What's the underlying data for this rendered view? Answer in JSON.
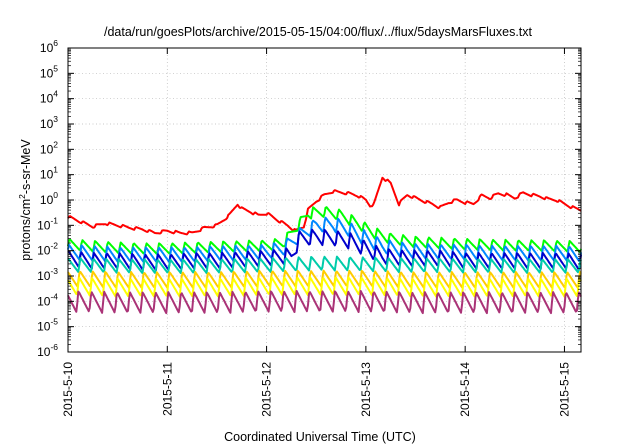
{
  "chart_data": {
    "type": "line",
    "title": "/data/run/goesPlots/archive/2015-05-15/04:00/flux/../flux/5daysMarsFluxes.txt",
    "xlabel": "Coordinated Universal Time (UTC)",
    "ylabel": {
      "prefix": "protons/cm",
      "sup": "2",
      "suffix": "-s-sr-MeV"
    },
    "yscale": "log",
    "ylim": [
      1e-06,
      1000000.0
    ],
    "xlim": [
      "2015-05-10 00:00",
      "2015-05-15 04:00"
    ],
    "grid": true,
    "legend": "none",
    "x_ticks": [
      {
        "t": 0,
        "label": "2015-5-10"
      },
      {
        "t": 24,
        "label": "2015-5-11"
      },
      {
        "t": 48,
        "label": "2015-5-12"
      },
      {
        "t": 72,
        "label": "2015-5-13"
      },
      {
        "t": 96,
        "label": "2015-5-14"
      },
      {
        "t": 120,
        "label": "2015-5-15"
      }
    ],
    "y_ticks": [
      {
        "exp": -6,
        "label": "10",
        "sup": "-6"
      },
      {
        "exp": -5,
        "label": "10",
        "sup": "-5"
      },
      {
        "exp": -4,
        "label": "10",
        "sup": "-4"
      },
      {
        "exp": -3,
        "label": "10",
        "sup": "-3"
      },
      {
        "exp": -2,
        "label": "10",
        "sup": "-2"
      },
      {
        "exp": -1,
        "label": "10",
        "sup": "-1"
      },
      {
        "exp": 0,
        "label": "10",
        "sup": "0"
      },
      {
        "exp": 1,
        "label": "10",
        "sup": "1"
      },
      {
        "exp": 2,
        "label": "10",
        "sup": "2"
      },
      {
        "exp": 3,
        "label": "10",
        "sup": "3"
      },
      {
        "exp": 4,
        "label": "10",
        "sup": "4"
      },
      {
        "exp": 5,
        "label": "10",
        "sup": "5"
      },
      {
        "exp": 6,
        "label": "10",
        "sup": "6"
      }
    ],
    "series": [
      {
        "color": "#ff0000",
        "values": [
          [
            0,
            0.22
          ],
          [
            3,
            0.14
          ],
          [
            6,
            0.09
          ],
          [
            9,
            0.12
          ],
          [
            12,
            0.1
          ],
          [
            15,
            0.08
          ],
          [
            18,
            0.07
          ],
          [
            21,
            0.05
          ],
          [
            24,
            0.06
          ],
          [
            27,
            0.05
          ],
          [
            30,
            0.05
          ],
          [
            33,
            0.08
          ],
          [
            36,
            0.1
          ],
          [
            39,
            0.25
          ],
          [
            41,
            0.7
          ],
          [
            42,
            0.45
          ],
          [
            44,
            0.35
          ],
          [
            46,
            0.25
          ],
          [
            48,
            0.3
          ],
          [
            51,
            0.15
          ],
          [
            53,
            0.1
          ],
          [
            55,
            0.06
          ],
          [
            57,
            0.09
          ],
          [
            58,
            0.4
          ],
          [
            60,
            0.9
          ],
          [
            62,
            1.6
          ],
          [
            64,
            2.2
          ],
          [
            66,
            2.0
          ],
          [
            68,
            1.8
          ],
          [
            70,
            1.5
          ],
          [
            72,
            1.0
          ],
          [
            73,
            0.6
          ],
          [
            74,
            0.7
          ],
          [
            76,
            8.0
          ],
          [
            78,
            4.5
          ],
          [
            80,
            0.7
          ],
          [
            82,
            1.6
          ],
          [
            84,
            1.2
          ],
          [
            86,
            0.9
          ],
          [
            88,
            0.7
          ],
          [
            90,
            0.5
          ],
          [
            92,
            0.8
          ],
          [
            94,
            1.0
          ],
          [
            96,
            0.8
          ],
          [
            98,
            0.7
          ],
          [
            100,
            1.5
          ],
          [
            102,
            1.2
          ],
          [
            104,
            1.8
          ],
          [
            106,
            1.6
          ],
          [
            108,
            1.2
          ],
          [
            110,
            1.9
          ],
          [
            112,
            1.6
          ],
          [
            114,
            1.4
          ],
          [
            116,
            1.1
          ],
          [
            118,
            1.0
          ],
          [
            120,
            0.7
          ],
          [
            122,
            0.5
          ],
          [
            124,
            0.4
          ]
        ]
      },
      {
        "color": "#00ff00",
        "values": [
          [
            0,
            0.018
          ],
          [
            6,
            0.015
          ],
          [
            12,
            0.013
          ],
          [
            18,
            0.012
          ],
          [
            24,
            0.012
          ],
          [
            30,
            0.013
          ],
          [
            36,
            0.014
          ],
          [
            42,
            0.015
          ],
          [
            48,
            0.016
          ],
          [
            52,
            0.02
          ],
          [
            56,
            0.12
          ],
          [
            58,
            0.3
          ],
          [
            62,
            0.35
          ],
          [
            66,
            0.25
          ],
          [
            70,
            0.12
          ],
          [
            74,
            0.05
          ],
          [
            78,
            0.03
          ],
          [
            84,
            0.022
          ],
          [
            90,
            0.02
          ],
          [
            96,
            0.018
          ],
          [
            102,
            0.017
          ],
          [
            108,
            0.016
          ],
          [
            114,
            0.016
          ],
          [
            120,
            0.015
          ],
          [
            124,
            0.014
          ]
        ]
      },
      {
        "color": "#0088ff",
        "values": [
          [
            0,
            0.009
          ],
          [
            6,
            0.008
          ],
          [
            12,
            0.007
          ],
          [
            18,
            0.007
          ],
          [
            24,
            0.007
          ],
          [
            30,
            0.007
          ],
          [
            36,
            0.008
          ],
          [
            42,
            0.008
          ],
          [
            48,
            0.009
          ],
          [
            52,
            0.012
          ],
          [
            56,
            0.04
          ],
          [
            60,
            0.1
          ],
          [
            64,
            0.11
          ],
          [
            68,
            0.07
          ],
          [
            72,
            0.03
          ],
          [
            76,
            0.015
          ],
          [
            82,
            0.01
          ],
          [
            90,
            0.009
          ],
          [
            96,
            0.009
          ],
          [
            102,
            0.008
          ],
          [
            108,
            0.008
          ],
          [
            114,
            0.008
          ],
          [
            120,
            0.008
          ],
          [
            124,
            0.007
          ]
        ]
      },
      {
        "color": "#0000cc",
        "values": [
          [
            0,
            0.005
          ],
          [
            6,
            0.004
          ],
          [
            12,
            0.004
          ],
          [
            18,
            0.0035
          ],
          [
            24,
            0.0035
          ],
          [
            30,
            0.004
          ],
          [
            36,
            0.004
          ],
          [
            42,
            0.0045
          ],
          [
            48,
            0.005
          ],
          [
            52,
            0.006
          ],
          [
            54,
            0.006
          ],
          [
            56,
            0.03
          ],
          [
            60,
            0.035
          ],
          [
            64,
            0.032
          ],
          [
            68,
            0.025
          ],
          [
            72,
            0.012
          ],
          [
            76,
            0.006
          ],
          [
            82,
            0.005
          ],
          [
            90,
            0.005
          ],
          [
            96,
            0.004
          ],
          [
            102,
            0.004
          ],
          [
            108,
            0.004
          ],
          [
            114,
            0.004
          ],
          [
            120,
            0.004
          ],
          [
            124,
            0.0035
          ]
        ]
      },
      {
        "color": "#00ccaa",
        "values": [
          [
            0,
            0.0028
          ],
          [
            12,
            0.0025
          ],
          [
            24,
            0.0024
          ],
          [
            36,
            0.0025
          ],
          [
            48,
            0.0027
          ],
          [
            56,
            0.003
          ],
          [
            62,
            0.0032
          ],
          [
            70,
            0.003
          ],
          [
            80,
            0.0027
          ],
          [
            96,
            0.0026
          ],
          [
            108,
            0.0025
          ],
          [
            124,
            0.0025
          ]
        ]
      },
      {
        "color": "#ffcc00",
        "values": [
          [
            0,
            0.0008
          ],
          [
            12,
            0.0007
          ],
          [
            24,
            0.0007
          ],
          [
            36,
            0.0007
          ],
          [
            48,
            0.0008
          ],
          [
            60,
            0.0008
          ],
          [
            72,
            0.0008
          ],
          [
            84,
            0.0007
          ],
          [
            96,
            0.0007
          ],
          [
            108,
            0.0007
          ],
          [
            124,
            0.0007
          ]
        ]
      },
      {
        "color": "#ffff00",
        "values": [
          [
            0,
            0.0004
          ],
          [
            12,
            0.00035
          ],
          [
            24,
            0.00035
          ],
          [
            36,
            0.00035
          ],
          [
            48,
            0.0004
          ],
          [
            60,
            0.0004
          ],
          [
            72,
            0.0004
          ],
          [
            84,
            0.00035
          ],
          [
            96,
            0.00035
          ],
          [
            108,
            0.00035
          ],
          [
            124,
            0.00035
          ]
        ]
      },
      {
        "color": "#aa3377",
        "values": [
          [
            0,
            0.0001
          ],
          [
            12,
            9e-05
          ],
          [
            24,
            9e-05
          ],
          [
            36,
            9e-05
          ],
          [
            48,
            0.0001
          ],
          [
            60,
            0.0001
          ],
          [
            72,
            0.0001
          ],
          [
            84,
            9e-05
          ],
          [
            96,
            9e-05
          ],
          [
            108,
            9e-05
          ],
          [
            124,
            9e-05
          ]
        ]
      }
    ]
  }
}
